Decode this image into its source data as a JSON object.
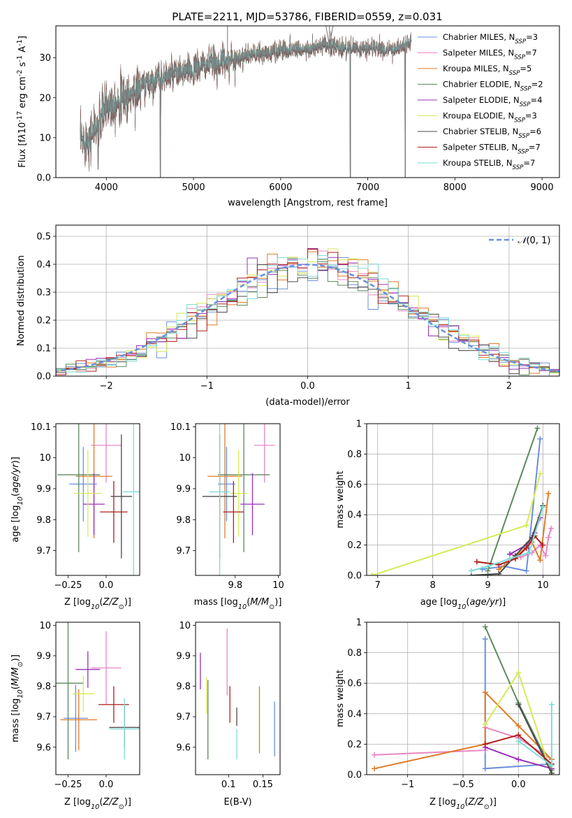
{
  "figure_title": "PLATE=2211, MJD=53786, FIBERID=0559, z=0.031",
  "colors": {
    "Chabrier MILES": "#6a8fdc",
    "Salpeter MILES": "#e887c4",
    "Kroupa MILES": "#e07b27",
    "Chabrier ELODIE": "#5b8a5e",
    "Salpeter ELODIE": "#9b2fb8",
    "Kroupa ELODIE": "#d6ea55",
    "Chabrier STELIB": "#4a4a4a",
    "Salpeter STELIB": "#b01e1e",
    "Kroupa STELIB": "#7ddcd6",
    "normal_curve": "#6a8fdc",
    "grid": "#b0b0b0"
  },
  "chart_data": [
    {
      "id": "spectrum",
      "type": "line",
      "title": "PLATE=2211, MJD=53786, FIBERID=0559, z=0.031",
      "xlabel": "wavelength [Angstrom, rest frame]",
      "ylabel": "Flux [f$_\\lambda$10$^{-17}$ erg cm$^{-2}$ s$^{-1}$ A$^{-1}$]",
      "xlim": [
        3420,
        9200
      ],
      "ylim": [
        0,
        38
      ],
      "xticks": [
        4000,
        5000,
        6000,
        7000,
        8000,
        9000
      ],
      "yticks": [
        0,
        10,
        20,
        30
      ],
      "grid": false,
      "legend_position": "top-right",
      "legend": [
        "Chabrier MILES, N$_{SSP}$=3",
        "Salpeter MILES, N$_{SSP}$=7",
        "Kroupa MILES, N$_{SSP}$=5",
        "Chabrier ELODIE, N$_{SSP}$=2",
        "Salpeter ELODIE, N$_{SSP}$=4",
        "Kroupa ELODIE, N$_{SSP}$=3",
        "Chabrier STELIB, N$_{SSP}$=6",
        "Salpeter STELIB, N$_{SSP}$=7",
        "Kroupa STELIB, N$_{SSP}$=7"
      ],
      "continuum": {
        "x": [
          3700,
          3800,
          3900,
          4000,
          4100,
          4200,
          4300,
          4400,
          4500,
          4600,
          4700,
          4800,
          4900,
          5000,
          5100,
          5200,
          5300,
          5400,
          5500,
          5600,
          5700,
          5800,
          5900,
          6000,
          6100,
          6200,
          6300,
          6400,
          6500,
          6600,
          6700,
          6800,
          6900,
          7000,
          7100,
          7200,
          7300,
          7400,
          7500
        ],
        "y": [
          9,
          10,
          13,
          18,
          19,
          20,
          21,
          23,
          24,
          25,
          25.5,
          26,
          26.5,
          27,
          28,
          28.5,
          29,
          29.5,
          30,
          30.5,
          31,
          31,
          31.5,
          32,
          32,
          32.5,
          32,
          32.5,
          33,
          33,
          32.5,
          32.5,
          32,
          32.5,
          32.5,
          32,
          32,
          33,
          34
        ]
      },
      "data_series": {
        "x_start": 3700,
        "x_end": 7500
      },
      "model_end_wavelengths": {
        "Chabrier MILES": 7430,
        "Salpeter MILES": 7430,
        "Kroupa MILES": 7430,
        "Chabrier ELODIE": 6800,
        "Salpeter ELODIE": 6800,
        "Kroupa ELODIE": 6800,
        "Chabrier STELIB": 7500,
        "Salpeter STELIB": 7500,
        "Kroupa STELIB": 7500
      },
      "dips": [
        {
          "x": 3905,
          "y": 2
        },
        {
          "x": 4620,
          "y": 0
        },
        {
          "x": 6800,
          "y": 0
        },
        {
          "x": 7430,
          "y": 0
        }
      ],
      "spikes": [
        {
          "x": 5390,
          "y": 38
        },
        {
          "x": 6560,
          "y": 38
        }
      ]
    },
    {
      "id": "residuals",
      "type": "histogram",
      "xlabel": "(data-model)/error",
      "ylabel": "Normed distribution",
      "xlim": [
        -2.5,
        2.5
      ],
      "ylim": [
        0,
        0.54
      ],
      "xticks": [
        -2,
        -1,
        0,
        1,
        2
      ],
      "yticks": [
        0.0,
        0.1,
        0.2,
        0.3,
        0.4,
        0.5
      ],
      "grid": true,
      "legend": [
        "$\\mathcal{N}(0,1)$"
      ],
      "legend_position": "top-right",
      "bin_width": 0.1
    },
    {
      "id": "age_vs_Z",
      "type": "scatter",
      "xlabel": "Z [log$_{10}$(Z/Z$_\\odot$)]",
      "ylabel": "age  [log$_{10}$(age/yr)]",
      "xlim": [
        -0.33,
        0.22
      ],
      "ylim": [
        9.62,
        10.11
      ],
      "xticks": [
        -0.25,
        0.0
      ],
      "yticks": [
        9.7,
        9.8,
        9.9,
        10.0,
        10.1
      ],
      "grid": false,
      "points": [
        {
          "model": "Chabrier MILES",
          "x": -0.15,
          "xerr": 0.09,
          "y": 9.915,
          "yerr": 0.12
        },
        {
          "model": "Salpeter MILES",
          "x": 0.0,
          "xerr": 0.1,
          "y": 10.04,
          "yerr": 0.12
        },
        {
          "model": "Kroupa MILES",
          "x": -0.08,
          "xerr": 0.12,
          "y": 9.94,
          "yerr": 0.2
        },
        {
          "model": "Chabrier ELODIE",
          "x": -0.18,
          "xerr": 0.14,
          "y": 9.945,
          "yerr": 0.25
        },
        {
          "model": "Salpeter ELODIE",
          "x": -0.08,
          "xerr": 0.07,
          "y": 9.85,
          "yerr": 0.1
        },
        {
          "model": "Kroupa ELODIE",
          "x": -0.12,
          "xerr": 0.09,
          "y": 9.885,
          "yerr": 0.14
        },
        {
          "model": "Chabrier STELIB",
          "x": 0.1,
          "xerr": 0.07,
          "y": 9.875,
          "yerr": 0.2
        },
        {
          "model": "Salpeter STELIB",
          "x": 0.05,
          "xerr": 0.09,
          "y": 9.825,
          "yerr": 0.1
        },
        {
          "model": "Kroupa STELIB",
          "x": 0.18,
          "xerr": 0.07,
          "y": 9.89,
          "yerr": 0.3
        }
      ]
    },
    {
      "id": "age_vs_mass",
      "type": "scatter",
      "xlabel": "mass [log$_{10}$(M/M$_\\odot$)]",
      "ylabel": "",
      "xlim": [
        9.52,
        10.01
      ],
      "ylim": [
        9.62,
        10.11
      ],
      "xticks": [
        9.75,
        10.0
      ],
      "yticks": [
        9.7,
        9.8,
        9.9,
        10.0,
        10.1
      ],
      "grid": false,
      "points": [
        {
          "model": "Chabrier MILES",
          "x": 9.7,
          "xerr": 0.05,
          "y": 9.915,
          "yerr": 0.12
        },
        {
          "model": "Salpeter MILES",
          "x": 9.92,
          "xerr": 0.06,
          "y": 10.04,
          "yerr": 0.12
        },
        {
          "model": "Kroupa MILES",
          "x": 9.69,
          "xerr": 0.1,
          "y": 9.94,
          "yerr": 0.2
        },
        {
          "model": "Chabrier ELODIE",
          "x": 9.8,
          "xerr": 0.15,
          "y": 9.945,
          "yerr": 0.25
        },
        {
          "model": "Salpeter ELODIE",
          "x": 9.85,
          "xerr": 0.07,
          "y": 9.85,
          "yerr": 0.1
        },
        {
          "model": "Kroupa ELODIE",
          "x": 9.77,
          "xerr": 0.05,
          "y": 9.885,
          "yerr": 0.14
        },
        {
          "model": "Chabrier STELIB",
          "x": 9.66,
          "xerr": 0.1,
          "y": 9.875,
          "yerr": 0.2
        },
        {
          "model": "Salpeter STELIB",
          "x": 9.74,
          "xerr": 0.06,
          "y": 9.825,
          "yerr": 0.1
        },
        {
          "model": "Kroupa STELIB",
          "x": 9.66,
          "xerr": 0.06,
          "y": 9.89,
          "yerr": 0.3
        }
      ]
    },
    {
      "id": "weight_vs_age",
      "type": "line",
      "xlabel": "age  [log$_{10}$(age/yr)]",
      "ylabel": "mass weight",
      "xlim": [
        6.8,
        10.3
      ],
      "ylim": [
        0,
        1
      ],
      "xticks": [
        7,
        8,
        9,
        10
      ],
      "yticks": [
        0.0,
        0.2,
        0.4,
        0.6,
        0.8,
        1.0
      ],
      "grid": true,
      "series": [
        {
          "model": "Chabrier MILES",
          "x": [
            8.9,
            9.3,
            9.7,
            9.95
          ],
          "y": [
            0.04,
            0.06,
            0.03,
            0.9
          ]
        },
        {
          "model": "Salpeter MILES",
          "x": [
            9.4,
            9.6,
            9.8,
            9.95,
            10.05,
            10.1,
            10.15
          ],
          "y": [
            0.14,
            0.12,
            0.15,
            0.2,
            0.13,
            0.25,
            0.31
          ]
        },
        {
          "model": "Kroupa MILES",
          "x": [
            9.2,
            9.5,
            9.8,
            9.95,
            10.1
          ],
          "y": [
            0.04,
            0.12,
            0.22,
            0.1,
            0.54
          ]
        },
        {
          "model": "Chabrier ELODIE",
          "x": [
            9.0,
            9.9
          ],
          "y": [
            0.03,
            0.97
          ]
        },
        {
          "model": "Salpeter ELODIE",
          "x": [
            9.4,
            9.7,
            9.85,
            9.95
          ],
          "y": [
            0.14,
            0.2,
            0.28,
            0.38
          ]
        },
        {
          "model": "Kroupa ELODIE",
          "x": [
            6.9,
            9.7,
            9.95
          ],
          "y": [
            0.0,
            0.33,
            0.67
          ]
        },
        {
          "model": "Chabrier STELIB",
          "x": [
            8.7,
            9.2,
            9.5,
            9.8,
            10.0
          ],
          "y": [
            0.0,
            0.01,
            0.13,
            0.25,
            0.46
          ]
        },
        {
          "model": "Salpeter STELIB",
          "x": [
            8.8,
            9.2,
            9.5,
            9.7,
            9.85,
            10.0
          ],
          "y": [
            0.09,
            0.07,
            0.11,
            0.18,
            0.26,
            0.2
          ]
        },
        {
          "model": "Kroupa STELIB",
          "x": [
            8.7,
            9.0,
            9.4,
            9.75,
            10.0
          ],
          "y": [
            0.03,
            0.06,
            0.11,
            0.15,
            0.45
          ]
        }
      ]
    },
    {
      "id": "mass_vs_Z",
      "type": "scatter",
      "xlabel": "Z [log$_{10}$(Z/Z$_\\odot$)]",
      "ylabel": "mass [log$_{10}$(M/M$_\\odot$)]",
      "xlim": [
        -0.33,
        0.22
      ],
      "ylim": [
        9.51,
        10.01
      ],
      "xticks": [
        -0.25,
        0.0
      ],
      "yticks": [
        9.6,
        9.7,
        9.8,
        9.9,
        10.0
      ],
      "grid": false,
      "points": [
        {
          "model": "Chabrier MILES",
          "x": -0.2,
          "xerr": 0.08,
          "y": 9.695,
          "yerr": 0.11
        },
        {
          "model": "Salpeter MILES",
          "x": 0.0,
          "xerr": 0.1,
          "y": 9.86,
          "yerr": 0.12
        },
        {
          "model": "Kroupa MILES",
          "x": -0.18,
          "xerr": 0.12,
          "y": 9.69,
          "yerr": 0.1
        },
        {
          "model": "Chabrier ELODIE",
          "x": -0.25,
          "xerr": 0.1,
          "y": 9.81,
          "yerr": 0.25
        },
        {
          "model": "Salpeter ELODIE",
          "x": -0.12,
          "xerr": 0.08,
          "y": 9.855,
          "yerr": 0.06
        },
        {
          "model": "Kroupa ELODIE",
          "x": -0.15,
          "xerr": 0.07,
          "y": 9.775,
          "yerr": 0.06
        },
        {
          "model": "Chabrier STELIB",
          "x": 0.12,
          "xerr": 0.1,
          "y": 9.665,
          "yerr": 0.07
        },
        {
          "model": "Salpeter STELIB",
          "x": 0.05,
          "xerr": 0.1,
          "y": 9.74,
          "yerr": 0.06
        },
        {
          "model": "Kroupa STELIB",
          "x": 0.12,
          "xerr": 0.1,
          "y": 9.66,
          "yerr": 0.1
        }
      ]
    },
    {
      "id": "mass_vs_ebv",
      "type": "scatter",
      "xlabel": "E(B-V)",
      "ylabel": "",
      "xlim": [
        0.052,
        0.175
      ],
      "ylim": [
        9.51,
        10.01
      ],
      "xticks": [
        0.1,
        0.15
      ],
      "yticks": [
        9.6,
        9.7,
        9.8,
        9.9,
        10.0
      ],
      "grid": false,
      "points": [
        {
          "model": "Chabrier MILES",
          "x": 0.167,
          "y": 9.66,
          "yerr": 0.09
        },
        {
          "model": "Salpeter MILES",
          "x": 0.098,
          "y": 9.88,
          "yerr": 0.11
        },
        {
          "model": "Kroupa MILES",
          "x": 0.145,
          "y": 9.69,
          "yerr": 0.11
        },
        {
          "model": "Chabrier ELODIE",
          "x": 0.07,
          "y": 9.69,
          "yerr": 0.13
        },
        {
          "model": "Salpeter ELODIE",
          "x": 0.059,
          "y": 9.85,
          "yerr": 0.06
        },
        {
          "model": "Kroupa ELODIE",
          "x": 0.068,
          "y": 9.77,
          "yerr": 0.06
        },
        {
          "model": "Chabrier STELIB",
          "x": 0.112,
          "y": 9.7,
          "yerr": 0.03
        },
        {
          "model": "Salpeter STELIB",
          "x": 0.102,
          "y": 9.74,
          "yerr": 0.06
        },
        {
          "model": "Kroupa STELIB",
          "x": 0.112,
          "y": 9.61,
          "yerr": 0.05
        }
      ]
    },
    {
      "id": "weight_vs_Z",
      "type": "line",
      "xlabel": "Z [log$_{10}$(Z/Z$_\\odot$)]",
      "ylabel": "mass weight",
      "xlim": [
        -1.37,
        0.37
      ],
      "ylim": [
        0,
        1
      ],
      "xticks": [
        -1.0,
        -0.5,
        0.0
      ],
      "yticks": [
        0.0,
        0.2,
        0.4,
        0.6,
        0.8,
        1.0
      ],
      "grid": true,
      "series": [
        {
          "model": "Chabrier MILES",
          "x": [
            -0.3,
            -0.3,
            0.3
          ],
          "y": [
            0.89,
            0.04,
            0.07
          ]
        },
        {
          "model": "Salpeter MILES",
          "x": [
            -1.3,
            -0.3,
            -0.3,
            0.0,
            0.3
          ],
          "y": [
            0.13,
            0.16,
            0.31,
            0.24,
            0.1
          ]
        },
        {
          "model": "Kroupa MILES",
          "x": [
            -1.3,
            -0.3,
            -0.3,
            0.0,
            0.3
          ],
          "y": [
            0.04,
            0.2,
            0.54,
            0.32,
            0.1
          ]
        },
        {
          "model": "Chabrier ELODIE",
          "x": [
            -0.3,
            0.0,
            0.3
          ],
          "y": [
            0.97,
            0.47,
            0.03
          ]
        },
        {
          "model": "Salpeter ELODIE",
          "x": [
            -0.3,
            0.0,
            0.3
          ],
          "y": [
            0.18,
            0.1,
            0.04
          ]
        },
        {
          "model": "Kroupa ELODIE",
          "x": [
            -0.3,
            0.0,
            0.3
          ],
          "y": [
            0.33,
            0.67,
            0.0
          ]
        },
        {
          "model": "Chabrier STELIB",
          "x": [
            0.0,
            0.3
          ],
          "y": [
            0.46,
            0.01
          ]
        },
        {
          "model": "Salpeter STELIB",
          "x": [
            -0.3,
            0.0,
            0.3
          ],
          "y": [
            0.2,
            0.26,
            0.07
          ]
        },
        {
          "model": "Kroupa STELIB",
          "x": [
            0.0,
            0.3,
            0.3
          ],
          "y": [
            0.22,
            0.06,
            0.46
          ]
        }
      ]
    }
  ]
}
